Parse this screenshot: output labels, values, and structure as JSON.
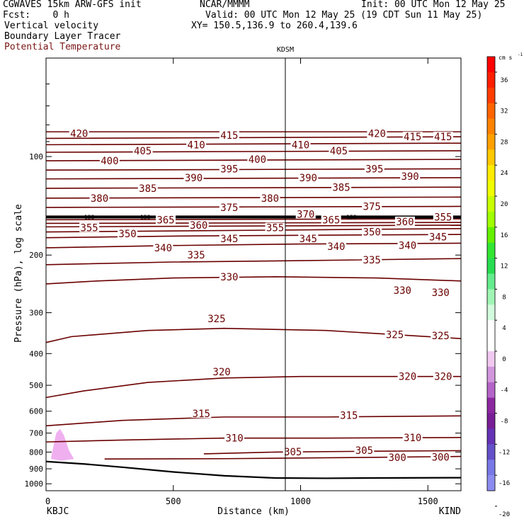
{
  "header": {
    "model": "CGWAVES 15km ARW-GFS init",
    "org": "NCAR/MMMM",
    "init": "Init: 00 UTC Mon 12 May 25",
    "fcst": "Fcst:    0 h",
    "valid": "Valid: 00 UTC Mon 12 May 25 (19 CDT Sun 11 May 25)",
    "field1": "Vertical velocity",
    "xy": "XY= 150.5,136.9 to 260.4,139.6",
    "field2": "Boundary Layer Tracer",
    "field3": "Potential Temperature"
  },
  "colors": {
    "theta": "#6b0000",
    "tracer": "#f0b0f0",
    "field3_text": "#7a1515"
  },
  "chart_data": {
    "type": "contour",
    "marker_label": "KDSM",
    "marker_x": 940,
    "left_endpoint": "KBJC",
    "right_endpoint": "KIND",
    "xlabel": "Distance (km)",
    "ylabel": "Pressure (hPa), log scale",
    "xlim": [
      0,
      1630
    ],
    "ylim": [
      1050,
      50
    ],
    "x_ticks": [
      0,
      500,
      1000,
      1500
    ],
    "x_tick_labels": [
      "0",
      "500",
      "1000",
      "1500"
    ],
    "y_ticks": [
      100,
      200,
      300,
      400,
      500,
      600,
      700,
      800,
      900,
      1000
    ],
    "y_tick_labels": [
      "100",
      "200",
      "300",
      "400",
      "500",
      "600",
      "700",
      "800",
      "900",
      "1000"
    ],
    "contours": [
      {
        "level": 300,
        "pts": [
          [
            230,
            840
          ],
          [
            700,
            838
          ],
          [
            1300,
            830
          ],
          [
            1630,
            825
          ]
        ]
      },
      {
        "level": 305,
        "pts": [
          [
            620,
            810
          ],
          [
            900,
            800
          ],
          [
            1300,
            795
          ],
          [
            1630,
            792
          ]
        ]
      },
      {
        "level": 310,
        "pts": [
          [
            0,
            745
          ],
          [
            300,
            735
          ],
          [
            700,
            725
          ],
          [
            1100,
            725
          ],
          [
            1630,
            722
          ]
        ]
      },
      {
        "level": 315,
        "pts": [
          [
            0,
            665
          ],
          [
            300,
            640
          ],
          [
            700,
            625
          ],
          [
            1100,
            625
          ],
          [
            1630,
            620
          ]
        ]
      },
      {
        "level": 320,
        "pts": [
          [
            0,
            545
          ],
          [
            150,
            520
          ],
          [
            400,
            490
          ],
          [
            700,
            475
          ],
          [
            1000,
            470
          ],
          [
            1630,
            470
          ]
        ]
      },
      {
        "level": 325,
        "pts": [
          [
            0,
            370
          ],
          [
            100,
            355
          ],
          [
            400,
            340
          ],
          [
            700,
            335
          ],
          [
            1100,
            340
          ],
          [
            1630,
            360
          ]
        ]
      },
      {
        "level": 330,
        "pts": [
          [
            0,
            245
          ],
          [
            200,
            240
          ],
          [
            500,
            235
          ],
          [
            900,
            233
          ],
          [
            1300,
            235
          ],
          [
            1630,
            240
          ]
        ]
      },
      {
        "level": 335,
        "pts": [
          [
            0,
            214
          ],
          [
            500,
            210
          ],
          [
            1000,
            208
          ],
          [
            1630,
            205
          ]
        ]
      },
      {
        "level": 340,
        "pts": [
          [
            0,
            190
          ],
          [
            500,
            187
          ],
          [
            1000,
            185
          ],
          [
            1630,
            184
          ]
        ]
      },
      {
        "level": 345,
        "pts": [
          [
            0,
            177
          ],
          [
            500,
            175
          ],
          [
            1000,
            174
          ],
          [
            1630,
            173
          ]
        ]
      },
      {
        "level": 350,
        "pts": [
          [
            0,
            170
          ],
          [
            1630,
            166
          ]
        ]
      },
      {
        "level": 355,
        "pts": [
          [
            0,
            164
          ],
          [
            1630,
            162
          ]
        ]
      },
      {
        "level": 360,
        "pts": [
          [
            0,
            160
          ],
          [
            1630,
            159
          ]
        ]
      },
      {
        "level": 365,
        "pts": [
          [
            0,
            156
          ],
          [
            1630,
            155
          ]
        ]
      },
      {
        "level": 370,
        "pts": [
          [
            0,
            152
          ],
          [
            1630,
            152
          ]
        ]
      },
      {
        "level": 375,
        "pts": [
          [
            0,
            143
          ],
          [
            1630,
            142
          ]
        ]
      },
      {
        "level": 380,
        "pts": [
          [
            0,
            134
          ],
          [
            1630,
            133
          ]
        ]
      },
      {
        "level": 385,
        "pts": [
          [
            0,
            125
          ],
          [
            1630,
            124
          ]
        ]
      },
      {
        "level": 390,
        "pts": [
          [
            0,
            117
          ],
          [
            1630,
            116
          ]
        ]
      },
      {
        "level": 395,
        "pts": [
          [
            0,
            110
          ],
          [
            1630,
            109
          ]
        ]
      },
      {
        "level": 400,
        "pts": [
          [
            0,
            103
          ],
          [
            1630,
            102
          ]
        ]
      },
      {
        "level": 405,
        "pts": [
          [
            0,
            97
          ],
          [
            1630,
            96
          ]
        ]
      },
      {
        "level": 410,
        "pts": [
          [
            0,
            92
          ],
          [
            1630,
            91
          ]
        ]
      },
      {
        "level": 415,
        "pts": [
          [
            0,
            88
          ],
          [
            1630,
            87
          ]
        ]
      },
      {
        "level": 420,
        "pts": [
          [
            0,
            84
          ],
          [
            1630,
            84
          ]
        ]
      }
    ],
    "contour_labels": [
      {
        "text": "420",
        "x": 130,
        "p": 85
      },
      {
        "text": "415",
        "x": 720,
        "p": 86
      },
      {
        "text": "420",
        "x": 1300,
        "p": 85
      },
      {
        "text": "415",
        "x": 1440,
        "p": 87
      },
      {
        "text": "415",
        "x": 1560,
        "p": 87
      },
      {
        "text": "410",
        "x": 590,
        "p": 92
      },
      {
        "text": "410",
        "x": 1000,
        "p": 92
      },
      {
        "text": "405",
        "x": 380,
        "p": 96
      },
      {
        "text": "405",
        "x": 1150,
        "p": 96
      },
      {
        "text": "400",
        "x": 250,
        "p": 103
      },
      {
        "text": "400",
        "x": 830,
        "p": 102
      },
      {
        "text": "395",
        "x": 720,
        "p": 109
      },
      {
        "text": "395",
        "x": 1290,
        "p": 109
      },
      {
        "text": "390",
        "x": 580,
        "p": 116
      },
      {
        "text": "390",
        "x": 1030,
        "p": 116
      },
      {
        "text": "390",
        "x": 1430,
        "p": 115
      },
      {
        "text": "385",
        "x": 400,
        "p": 125
      },
      {
        "text": "385",
        "x": 1160,
        "p": 124
      },
      {
        "text": "380",
        "x": 210,
        "p": 134
      },
      {
        "text": "380",
        "x": 880,
        "p": 134
      },
      {
        "text": "375",
        "x": 720,
        "p": 143
      },
      {
        "text": "375",
        "x": 1280,
        "p": 142
      },
      {
        "text": "370",
        "x": 1020,
        "p": 150
      },
      {
        "text": "365",
        "x": 470,
        "p": 156
      },
      {
        "text": "365",
        "x": 1120,
        "p": 156
      },
      {
        "text": "360",
        "x": 600,
        "p": 162
      },
      {
        "text": "360",
        "x": 1410,
        "p": 158
      },
      {
        "text": "355",
        "x": 1560,
        "p": 153
      },
      {
        "text": "355",
        "x": 170,
        "p": 165
      },
      {
        "text": "355",
        "x": 900,
        "p": 165
      },
      {
        "text": "350",
        "x": 320,
        "p": 172
      },
      {
        "text": "350",
        "x": 1280,
        "p": 170
      },
      {
        "text": "345",
        "x": 720,
        "p": 178
      },
      {
        "text": "345",
        "x": 1030,
        "p": 178
      },
      {
        "text": "345",
        "x": 1540,
        "p": 176
      },
      {
        "text": "340",
        "x": 460,
        "p": 190
      },
      {
        "text": "340",
        "x": 1140,
        "p": 188
      },
      {
        "text": "340",
        "x": 1420,
        "p": 187
      },
      {
        "text": "335",
        "x": 590,
        "p": 200
      },
      {
        "text": "335",
        "x": 1280,
        "p": 207
      },
      {
        "text": "330",
        "x": 720,
        "p": 233
      },
      {
        "text": "330",
        "x": 1400,
        "p": 256
      },
      {
        "text": "330",
        "x": 1550,
        "p": 260
      },
      {
        "text": "325",
        "x": 670,
        "p": 313
      },
      {
        "text": "325",
        "x": 1370,
        "p": 350
      },
      {
        "text": "325",
        "x": 1550,
        "p": 353
      },
      {
        "text": "320",
        "x": 690,
        "p": 455
      },
      {
        "text": "320",
        "x": 1420,
        "p": 470
      },
      {
        "text": "320",
        "x": 1560,
        "p": 470
      },
      {
        "text": "315",
        "x": 610,
        "p": 610
      },
      {
        "text": "315",
        "x": 1190,
        "p": 618
      },
      {
        "text": "310",
        "x": 740,
        "p": 725
      },
      {
        "text": "310",
        "x": 1440,
        "p": 722
      },
      {
        "text": "305",
        "x": 970,
        "p": 798
      },
      {
        "text": "305",
        "x": 1250,
        "p": 790
      },
      {
        "text": "300",
        "x": 1380,
        "p": 830
      },
      {
        "text": "300",
        "x": 1550,
        "p": 828
      }
    ],
    "tropopause_label": {
      "text": "158",
      "values": [
        158,
        158,
        158
      ],
      "x": [
        170,
        390,
        1200
      ]
    },
    "colorbar": {
      "unit": "cm s",
      "unit_exp": "-1",
      "levels": [
        36,
        32,
        28,
        24,
        20,
        16,
        12,
        8,
        4,
        0,
        -4,
        -8,
        -12,
        -16,
        -20
      ],
      "labels": [
        "36",
        "32",
        "28",
        "24",
        "20",
        "16",
        "12",
        "8",
        "4",
        "0",
        "-4",
        "-8",
        "-12",
        "-16",
        "-20"
      ],
      "colors": [
        "#ff0000",
        "#ff1e00",
        "#ff3c00",
        "#ff6400",
        "#ff8200",
        "#ffa000",
        "#ffc800",
        "#ffeb00",
        "#f0ff00",
        "#c8ff00",
        "#a0ff00",
        "#64f000",
        "#32e632",
        "#28dc50",
        "#64eb8c",
        "#a0f5b4",
        "#d2fadc",
        "#ffffff",
        "#ffffff",
        "#f0c8f0",
        "#d296dc",
        "#b464c8",
        "#8c28a0",
        "#781e96",
        "#6432b4",
        "#6450c8",
        "#7878e6",
        "#8c8cf0"
      ]
    }
  }
}
